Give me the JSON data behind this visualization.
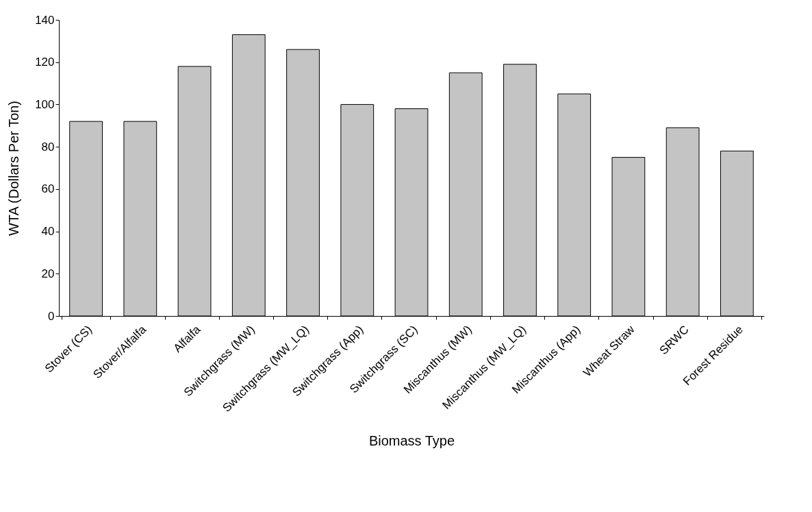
{
  "chart_data": {
    "type": "bar",
    "xlabel": "Biomass Type",
    "ylabel": "WTA (Dollars Per Ton)",
    "categories": [
      "Stover (CS)",
      "Stover/Alfalfa",
      "Alfalfa",
      "Switchgrass (MW)",
      "Switchgrass (MW_LQ)",
      "Switchgrass (App)",
      "Switchgrass (SC)",
      "Miscanthus (MW)",
      "Miscanthus (MW_LQ)",
      "Miscanthus (App)",
      "Wheat Straw",
      "SRWC",
      "Forest Residue"
    ],
    "values": [
      92,
      92,
      118,
      133,
      126,
      100,
      98,
      115,
      119,
      105,
      75,
      89,
      78
    ],
    "color": "#c4c4c4",
    "ylim": [
      0,
      140
    ],
    "yticks": [
      0,
      20,
      40,
      60,
      80,
      100,
      120,
      140
    ],
    "grid": false
  }
}
